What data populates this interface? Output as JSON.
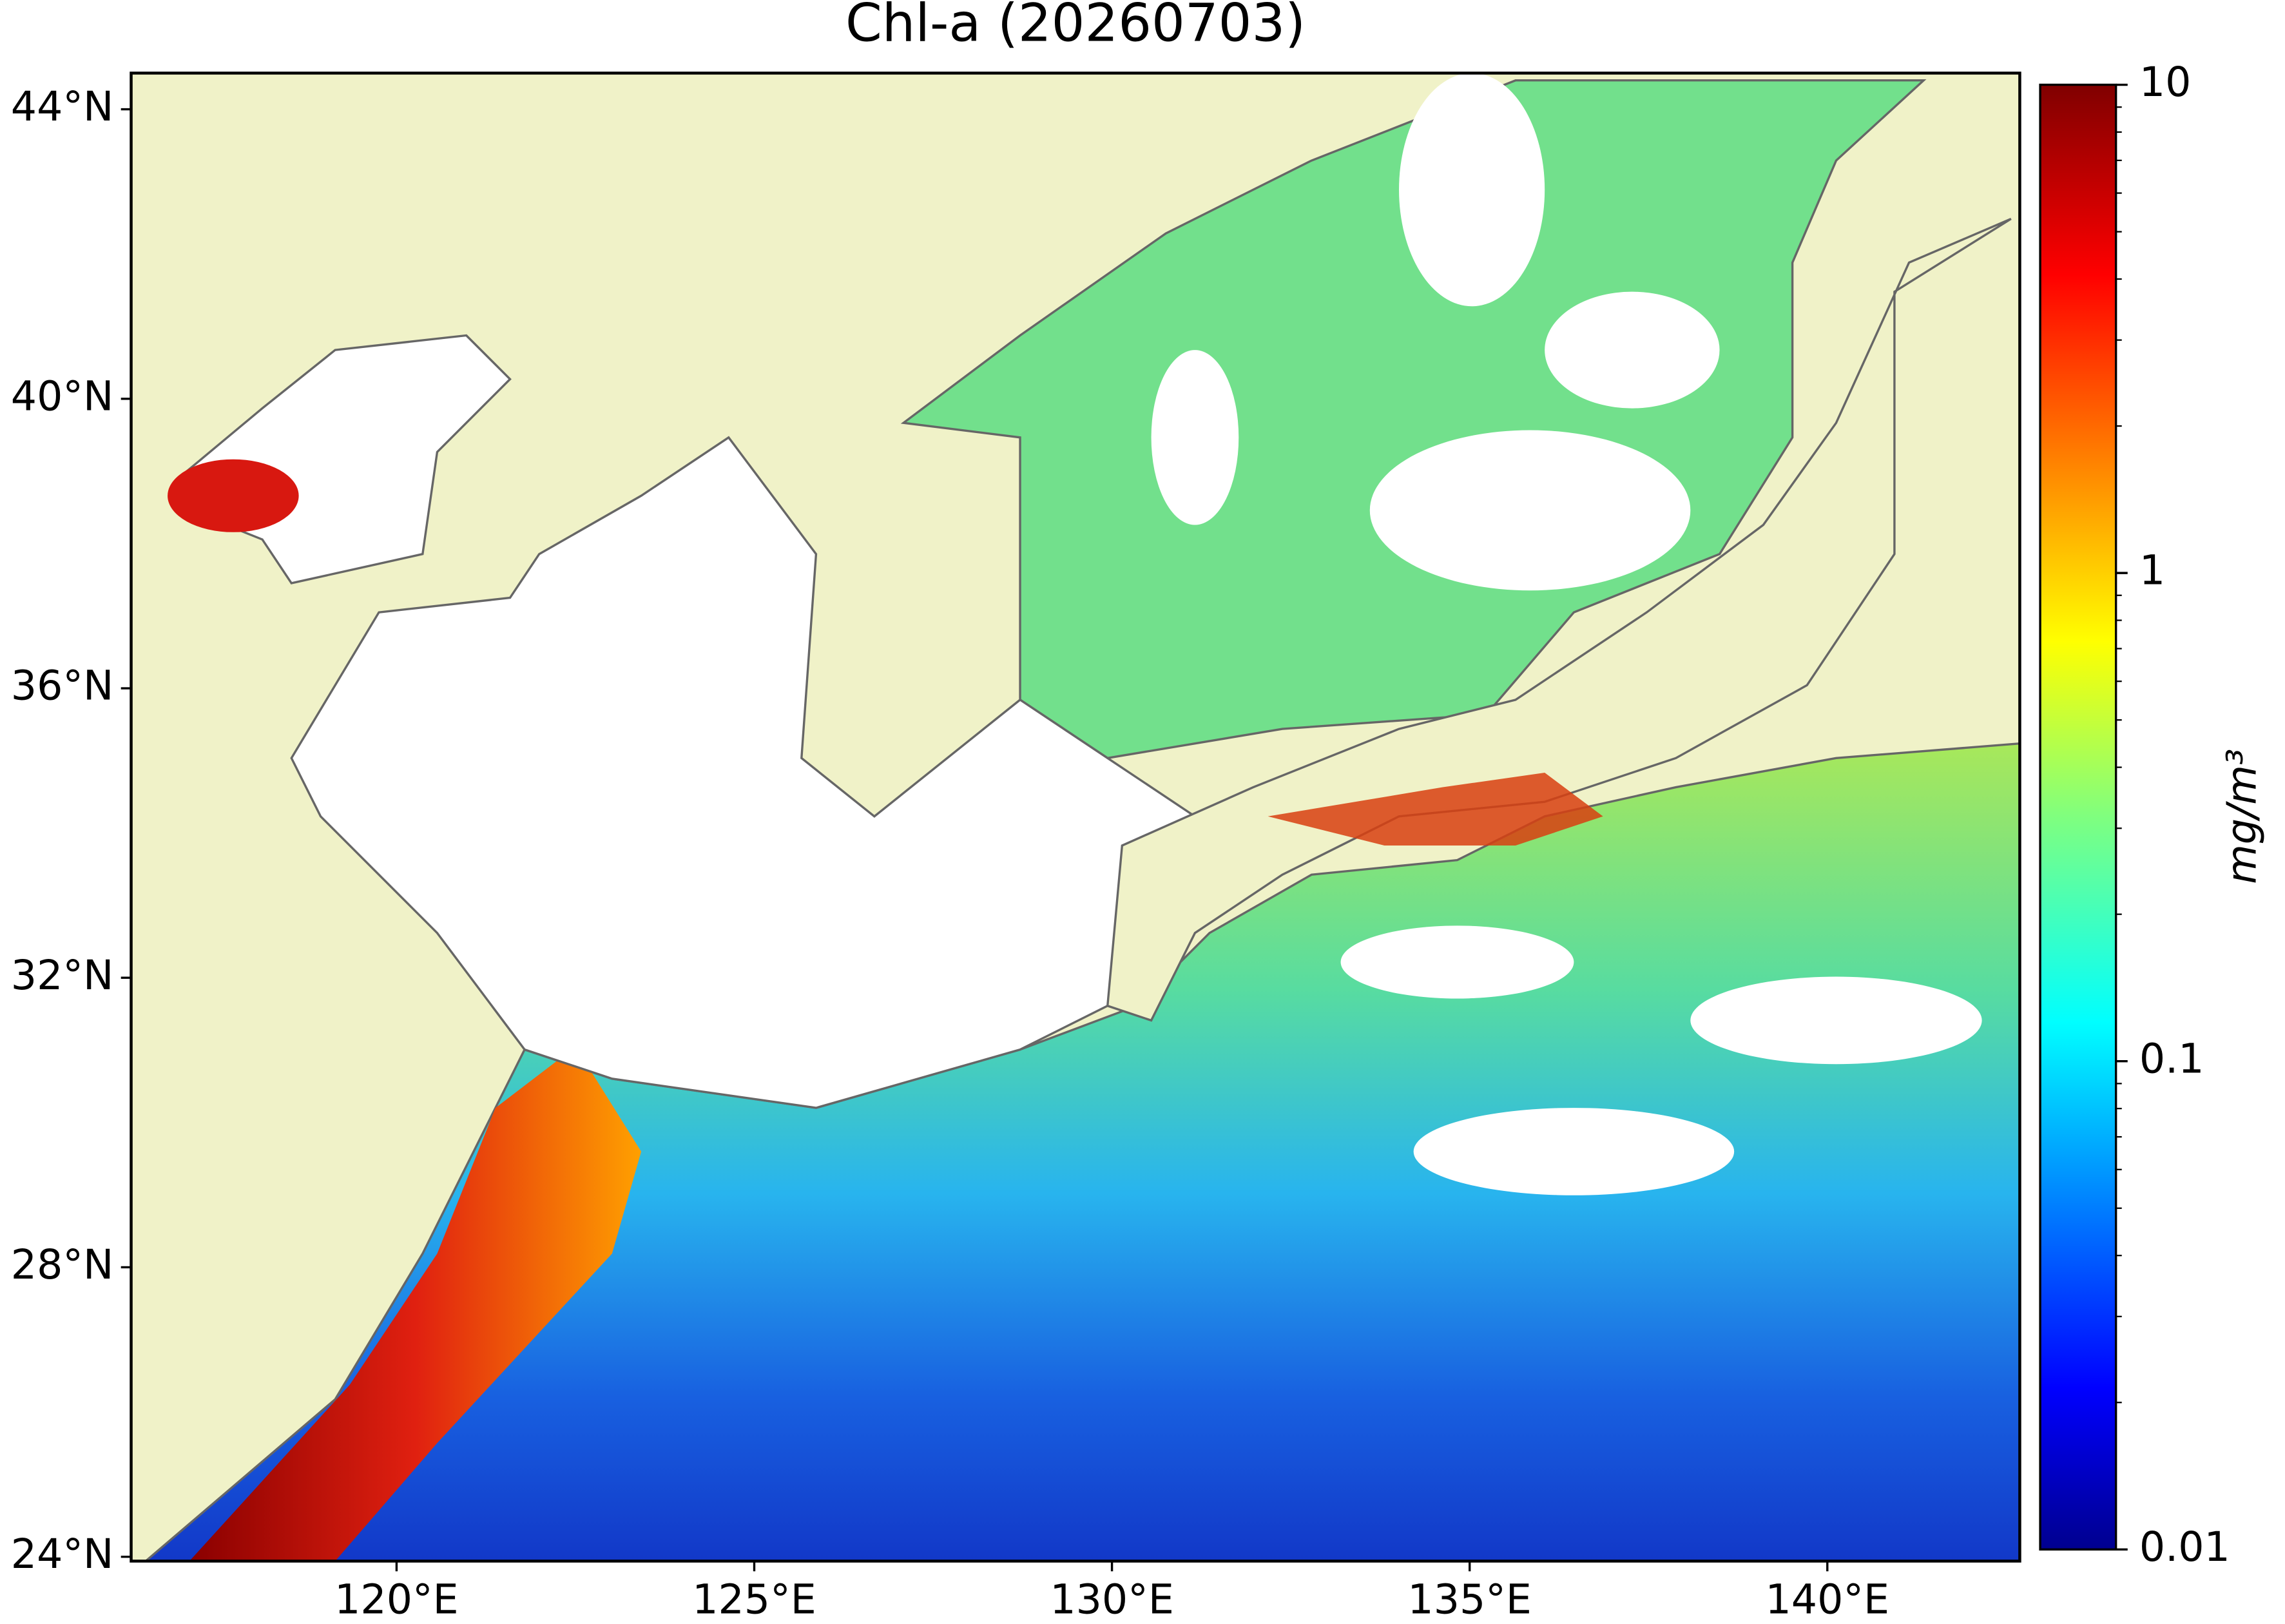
{
  "title": "Chl-a (20260703)",
  "map": {
    "xlim": [
      116.29,
      142.69
    ],
    "ylim": [
      23.94,
      44.5
    ],
    "xticks": [
      {
        "value": 120,
        "label": "120°E"
      },
      {
        "value": 125,
        "label": "125°E"
      },
      {
        "value": 130,
        "label": "130°E"
      },
      {
        "value": 135,
        "label": "135°E"
      },
      {
        "value": 140,
        "label": "140°E"
      }
    ],
    "yticks": [
      {
        "value": 24,
        "label": "24°N"
      },
      {
        "value": 28,
        "label": "28°N"
      },
      {
        "value": 32,
        "label": "32°N"
      },
      {
        "value": 36,
        "label": "36°N"
      },
      {
        "value": 40,
        "label": "40°N"
      },
      {
        "value": 44,
        "label": "44°N"
      }
    ]
  },
  "colorbar": {
    "label": "mg/m³",
    "scale": "log",
    "lim": [
      0.01,
      10
    ],
    "ticks": [
      0.01,
      0.1,
      1,
      10
    ],
    "colormap": "jet"
  }
}
